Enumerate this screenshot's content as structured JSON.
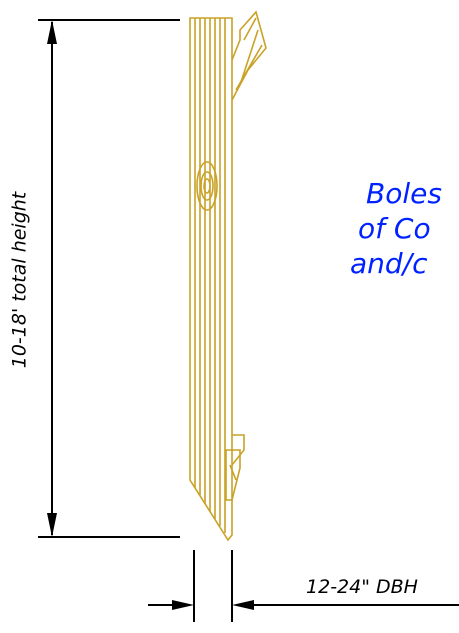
{
  "dimensions": {
    "height_label": "10-18' total height",
    "width_label": "12-24\" DBH"
  },
  "note": {
    "lines": [
      "Boles",
      "of Co",
      "and/c"
    ]
  }
}
